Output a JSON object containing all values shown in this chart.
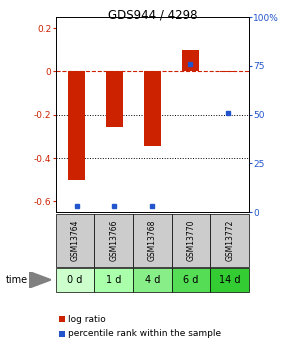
{
  "title": "GDS944 / 4298",
  "samples": [
    "GSM13764",
    "GSM13766",
    "GSM13768",
    "GSM13770",
    "GSM13772"
  ],
  "time_labels": [
    "0 d",
    "1 d",
    "4 d",
    "6 d",
    "14 d"
  ],
  "log_ratios": [
    -0.5,
    -0.255,
    -0.345,
    0.1,
    -0.005
  ],
  "percentile_ranks": [
    3,
    3,
    3,
    76,
    51
  ],
  "bar_color": "#cc2200",
  "dot_color": "#2255cc",
  "ylim_left": [
    -0.65,
    0.25
  ],
  "ylim_right": [
    0,
    100
  ],
  "yticks_left": [
    0.2,
    0.0,
    -0.2,
    -0.4,
    -0.6
  ],
  "yticks_right": [
    100,
    75,
    50,
    25,
    0
  ],
  "dotted_lines": [
    -0.2,
    -0.4
  ],
  "bg_color": "#ffffff",
  "gsm_row_color": "#cccccc",
  "time_row_colors": [
    "#ccffcc",
    "#aaffaa",
    "#88ee88",
    "#55dd55",
    "#33cc33"
  ],
  "legend_log_ratio": "log ratio",
  "legend_percentile": "percentile rank within the sample",
  "bar_width": 0.45
}
